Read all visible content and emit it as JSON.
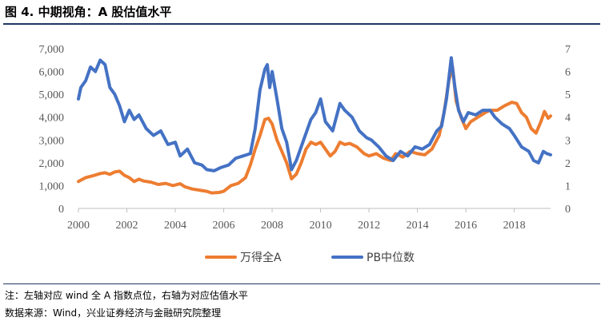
{
  "header": {
    "title": "图 4. 中期视角：A 股估值水平"
  },
  "footer": {
    "note": "注：左轴对应 wind 全 A 指数点位，右轴为对应估值水平",
    "source": "数据来源：Wind，兴业证券经济与金融研究院整理"
  },
  "chart_data": {
    "type": "line",
    "title": "",
    "x_ticks": [
      "2000",
      "2002",
      "2004",
      "2006",
      "2008",
      "2010",
      "2012",
      "2014",
      "2016",
      "2018"
    ],
    "y_left": {
      "ticks": [
        "0",
        "1,000",
        "2,000",
        "3,000",
        "4,000",
        "5,000",
        "6,000",
        "7,000"
      ],
      "range": [
        0,
        7000
      ]
    },
    "y_right": {
      "ticks": [
        "0",
        "1",
        "2",
        "3",
        "4",
        "5",
        "6",
        "7"
      ],
      "range": [
        0,
        7
      ]
    },
    "x_range": [
      2000,
      2019.5
    ],
    "grid": false,
    "legend_position": "bottom",
    "series": [
      {
        "name": "万得全A",
        "axis": "left",
        "color": "#ED7D31",
        "points": [
          [
            2000.0,
            1180
          ],
          [
            2000.3,
            1350
          ],
          [
            2000.6,
            1430
          ],
          [
            2000.9,
            1530
          ],
          [
            2001.1,
            1560
          ],
          [
            2001.3,
            1490
          ],
          [
            2001.5,
            1600
          ],
          [
            2001.7,
            1630
          ],
          [
            2001.9,
            1450
          ],
          [
            2002.1,
            1350
          ],
          [
            2002.3,
            1180
          ],
          [
            2002.5,
            1280
          ],
          [
            2002.7,
            1200
          ],
          [
            2003.0,
            1150
          ],
          [
            2003.3,
            1050
          ],
          [
            2003.6,
            1100
          ],
          [
            2003.9,
            1000
          ],
          [
            2004.2,
            1080
          ],
          [
            2004.4,
            950
          ],
          [
            2004.7,
            850
          ],
          [
            2005.0,
            800
          ],
          [
            2005.3,
            750
          ],
          [
            2005.5,
            680
          ],
          [
            2005.8,
            700
          ],
          [
            2006.0,
            750
          ],
          [
            2006.3,
            1000
          ],
          [
            2006.6,
            1100
          ],
          [
            2006.9,
            1350
          ],
          [
            2007.1,
            1900
          ],
          [
            2007.3,
            2600
          ],
          [
            2007.5,
            3200
          ],
          [
            2007.7,
            3900
          ],
          [
            2007.85,
            3950
          ],
          [
            2008.0,
            3700
          ],
          [
            2008.2,
            3000
          ],
          [
            2008.4,
            2500
          ],
          [
            2008.6,
            2000
          ],
          [
            2008.8,
            1300
          ],
          [
            2009.0,
            1500
          ],
          [
            2009.2,
            2000
          ],
          [
            2009.4,
            2600
          ],
          [
            2009.6,
            2900
          ],
          [
            2009.8,
            2800
          ],
          [
            2010.0,
            2900
          ],
          [
            2010.2,
            2600
          ],
          [
            2010.4,
            2300
          ],
          [
            2010.6,
            2500
          ],
          [
            2010.8,
            2900
          ],
          [
            2011.0,
            2800
          ],
          [
            2011.2,
            2850
          ],
          [
            2011.5,
            2700
          ],
          [
            2011.8,
            2400
          ],
          [
            2012.0,
            2300
          ],
          [
            2012.3,
            2400
          ],
          [
            2012.6,
            2200
          ],
          [
            2012.9,
            2100
          ],
          [
            2013.1,
            2400
          ],
          [
            2013.4,
            2250
          ],
          [
            2013.7,
            2500
          ],
          [
            2014.0,
            2400
          ],
          [
            2014.3,
            2350
          ],
          [
            2014.6,
            2600
          ],
          [
            2014.9,
            3200
          ],
          [
            2015.1,
            4200
          ],
          [
            2015.3,
            5600
          ],
          [
            2015.45,
            6200
          ],
          [
            2015.6,
            4700
          ],
          [
            2015.8,
            4000
          ],
          [
            2016.0,
            3500
          ],
          [
            2016.2,
            3800
          ],
          [
            2016.5,
            4000
          ],
          [
            2016.8,
            4200
          ],
          [
            2017.0,
            4300
          ],
          [
            2017.3,
            4300
          ],
          [
            2017.6,
            4500
          ],
          [
            2017.9,
            4650
          ],
          [
            2018.1,
            4600
          ],
          [
            2018.3,
            4200
          ],
          [
            2018.5,
            4000
          ],
          [
            2018.7,
            3500
          ],
          [
            2018.9,
            3300
          ],
          [
            2019.1,
            3800
          ],
          [
            2019.25,
            4250
          ],
          [
            2019.4,
            3950
          ],
          [
            2019.5,
            4050
          ]
        ]
      },
      {
        "name": "PB中位数",
        "axis": "right",
        "color": "#4472C4",
        "points": [
          [
            2000.0,
            4.8
          ],
          [
            2000.1,
            5.3
          ],
          [
            2000.3,
            5.6
          ],
          [
            2000.5,
            6.2
          ],
          [
            2000.7,
            6.0
          ],
          [
            2000.9,
            6.5
          ],
          [
            2001.1,
            6.3
          ],
          [
            2001.3,
            5.3
          ],
          [
            2001.5,
            5.0
          ],
          [
            2001.7,
            4.5
          ],
          [
            2001.9,
            3.8
          ],
          [
            2002.1,
            4.3
          ],
          [
            2002.3,
            3.9
          ],
          [
            2002.5,
            4.1
          ],
          [
            2002.8,
            3.5
          ],
          [
            2003.1,
            3.2
          ],
          [
            2003.4,
            3.4
          ],
          [
            2003.7,
            2.8
          ],
          [
            2004.0,
            2.9
          ],
          [
            2004.2,
            2.3
          ],
          [
            2004.5,
            2.6
          ],
          [
            2004.8,
            2.0
          ],
          [
            2005.1,
            1.9
          ],
          [
            2005.3,
            1.7
          ],
          [
            2005.6,
            1.65
          ],
          [
            2005.9,
            1.8
          ],
          [
            2006.2,
            1.9
          ],
          [
            2006.5,
            2.2
          ],
          [
            2006.8,
            2.3
          ],
          [
            2007.1,
            2.4
          ],
          [
            2007.3,
            3.5
          ],
          [
            2007.5,
            5.2
          ],
          [
            2007.7,
            6.1
          ],
          [
            2007.8,
            6.3
          ],
          [
            2007.9,
            5.3
          ],
          [
            2008.0,
            6.0
          ],
          [
            2008.2,
            4.8
          ],
          [
            2008.4,
            3.5
          ],
          [
            2008.6,
            2.9
          ],
          [
            2008.8,
            1.7
          ],
          [
            2009.0,
            2.1
          ],
          [
            2009.3,
            3.0
          ],
          [
            2009.6,
            3.9
          ],
          [
            2009.8,
            4.2
          ],
          [
            2010.0,
            4.8
          ],
          [
            2010.2,
            3.8
          ],
          [
            2010.5,
            3.4
          ],
          [
            2010.8,
            4.6
          ],
          [
            2011.0,
            4.3
          ],
          [
            2011.3,
            4.0
          ],
          [
            2011.6,
            3.4
          ],
          [
            2011.9,
            3.1
          ],
          [
            2012.1,
            3.0
          ],
          [
            2012.4,
            2.7
          ],
          [
            2012.7,
            2.3
          ],
          [
            2013.0,
            2.1
          ],
          [
            2013.3,
            2.5
          ],
          [
            2013.6,
            2.3
          ],
          [
            2013.9,
            2.7
          ],
          [
            2014.2,
            2.6
          ],
          [
            2014.5,
            2.8
          ],
          [
            2014.8,
            3.4
          ],
          [
            2015.0,
            3.6
          ],
          [
            2015.2,
            4.8
          ],
          [
            2015.4,
            6.6
          ],
          [
            2015.55,
            5.3
          ],
          [
            2015.7,
            4.3
          ],
          [
            2015.9,
            3.8
          ],
          [
            2016.1,
            4.2
          ],
          [
            2016.4,
            4.1
          ],
          [
            2016.7,
            4.3
          ],
          [
            2017.0,
            4.3
          ],
          [
            2017.2,
            4.0
          ],
          [
            2017.5,
            3.7
          ],
          [
            2017.8,
            3.5
          ],
          [
            2018.0,
            3.2
          ],
          [
            2018.3,
            2.7
          ],
          [
            2018.6,
            2.5
          ],
          [
            2018.8,
            2.1
          ],
          [
            2019.0,
            2.0
          ],
          [
            2019.2,
            2.5
          ],
          [
            2019.35,
            2.4
          ],
          [
            2019.5,
            2.35
          ]
        ]
      }
    ]
  }
}
